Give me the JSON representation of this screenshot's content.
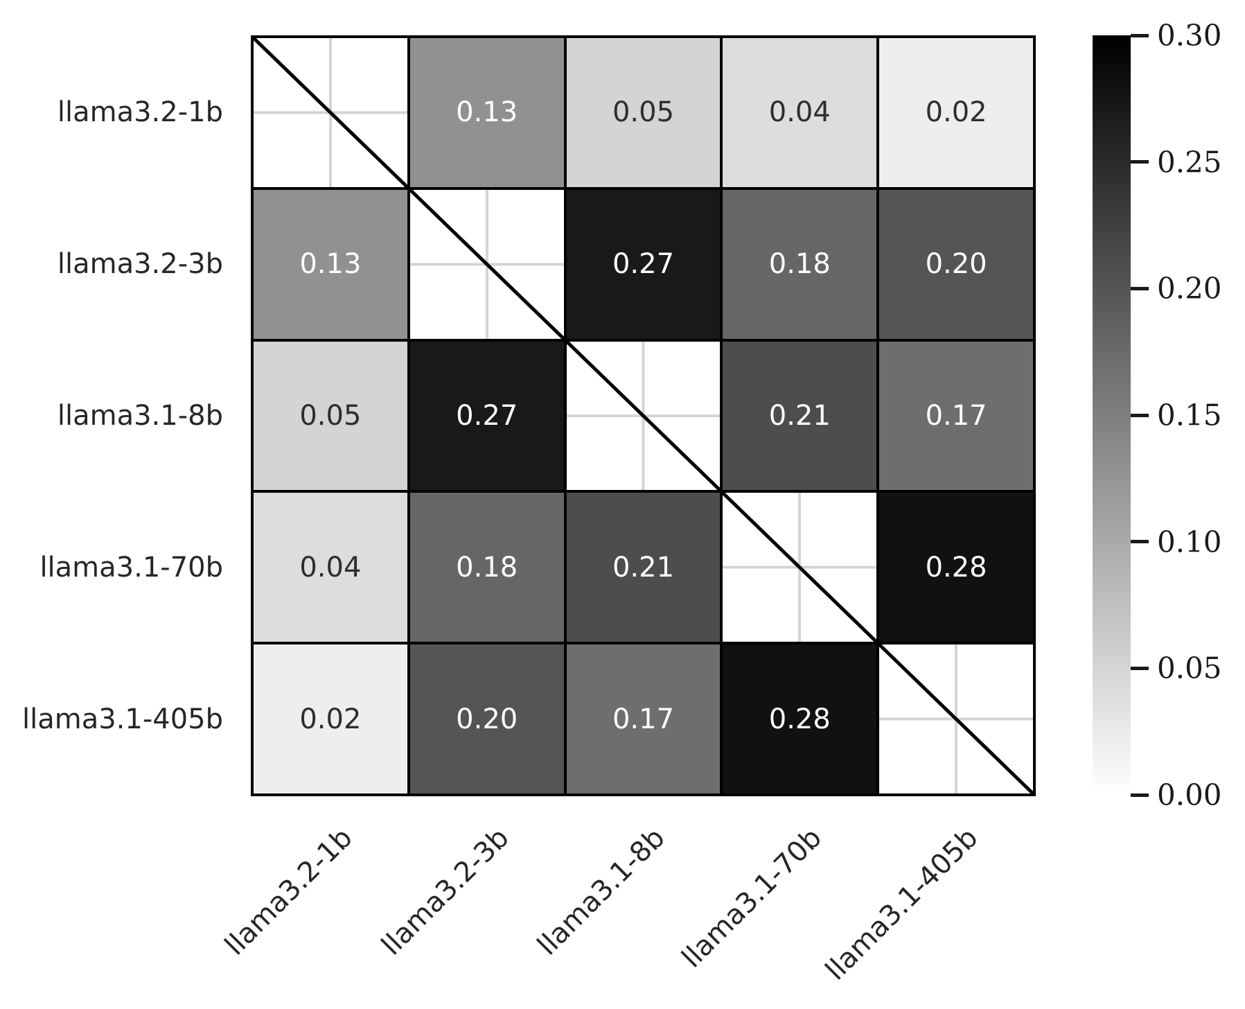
{
  "colors": {
    "background": "#ffffff",
    "cell_border": "#000000",
    "diagonal_line": "#000000",
    "gridline": "#d4d4d4",
    "text_dark": "#2e2e2e",
    "text_light": "#ffffff",
    "tick_color": "#1a1a1a"
  },
  "chart_data": {
    "type": "heatmap",
    "title": "",
    "xlabel": "",
    "ylabel": "",
    "models": [
      "llama3.2-1b",
      "llama3.2-3b",
      "llama3.1-8b",
      "llama3.1-70b",
      "llama3.1-405b"
    ],
    "matrix": [
      [
        null,
        0.13,
        0.05,
        0.04,
        0.02
      ],
      [
        0.13,
        null,
        0.27,
        0.18,
        0.2
      ],
      [
        0.05,
        0.27,
        null,
        0.21,
        0.17
      ],
      [
        0.04,
        0.18,
        0.21,
        null,
        0.28
      ],
      [
        0.02,
        0.2,
        0.17,
        0.28,
        null
      ]
    ],
    "value_decimals": 2,
    "diagonal": "masked-with-slash",
    "grid": true,
    "color_scale": {
      "min": 0.0,
      "max": 0.3,
      "low_color": "#ffffff",
      "high_color": "#000000"
    },
    "colorbar": {
      "position": "right",
      "ticks": [
        "0.30",
        "0.25",
        "0.20",
        "0.15",
        "0.10",
        "0.05",
        "0.00"
      ]
    }
  }
}
